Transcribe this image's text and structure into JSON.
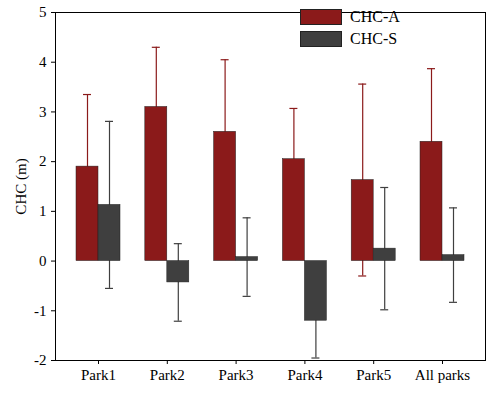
{
  "chart_data": {
    "type": "bar",
    "y_label": "CHC (m)",
    "categories": [
      "Park1",
      "Park2",
      "Park3",
      "Park4",
      "Park5",
      "All parks"
    ],
    "series": [
      {
        "name": "CHC-A",
        "color": "#8b1a1a",
        "values": [
          1.9,
          3.1,
          2.6,
          2.05,
          1.63,
          2.4
        ],
        "errors": [
          1.45,
          1.2,
          1.45,
          1.02,
          1.93,
          1.47
        ]
      },
      {
        "name": "CHC-S",
        "color": "#3f3f3f",
        "values": [
          1.13,
          -0.43,
          0.08,
          -1.2,
          0.25,
          0.12
        ],
        "errors": [
          1.68,
          0.78,
          0.79,
          0.75,
          1.23,
          0.95
        ]
      }
    ],
    "ylim": [
      -2,
      5
    ],
    "yticks": [
      -2,
      -1,
      0,
      1,
      2,
      3,
      4,
      5
    ],
    "legend": "top-right"
  }
}
